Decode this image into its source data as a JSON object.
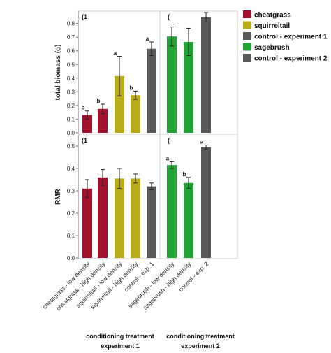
{
  "chart_data": {
    "type": "bar",
    "categories": [
      "cheatgrass - low density",
      "cheatgrass - high density",
      "squirreltail - low density",
      "squirreltail - high density",
      "control - exp. 1",
      "sagebrush - low density",
      "sagebrush - high density",
      "control - exp. 2"
    ],
    "bar_colors": [
      "#a3122c",
      "#a3122c",
      "#b8ad18",
      "#b8ad18",
      "#595959",
      "#22a336",
      "#22a336",
      "#595959"
    ],
    "legend": {
      "position": "right",
      "entries": [
        {
          "label": "cheatgrass",
          "color": "#a3122c"
        },
        {
          "label": "squirreltail",
          "color": "#b8ad18"
        },
        {
          "label": "control - experiment 1",
          "color": "#595959"
        },
        {
          "label": "sagebrush",
          "color": "#22a336"
        },
        {
          "label": "control - experiment 2",
          "color": "#595959"
        }
      ]
    },
    "panels": [
      {
        "panel_label_left": "(1",
        "panel_label_right": "(",
        "ylabel": "total biomass (g)",
        "ylim": [
          0,
          0.88
        ],
        "yticks": [
          "0.0",
          "0.1",
          "0.2",
          "0.3",
          "0.4",
          "0.5",
          "0.6",
          "0.7",
          "0.8"
        ],
        "values": [
          0.13,
          0.175,
          0.415,
          0.275,
          0.615,
          0.705,
          0.665,
          0.845
        ],
        "errors": [
          0.03,
          0.035,
          0.145,
          0.03,
          0.05,
          0.07,
          0.1,
          0.035
        ],
        "letters": [
          "b",
          "b",
          "a",
          "b",
          "a",
          "",
          "",
          ""
        ]
      },
      {
        "panel_label_left": "(1",
        "panel_label_right": "(",
        "ylabel": "RMR",
        "ylim": [
          0,
          0.52
        ],
        "yticks": [
          "0.0",
          "0.1",
          "0.2",
          "0.3",
          "0.4",
          "0.5"
        ],
        "values": [
          0.31,
          0.36,
          0.355,
          0.355,
          0.32,
          0.415,
          0.335,
          0.495
        ],
        "errors": [
          0.04,
          0.035,
          0.045,
          0.02,
          0.015,
          0.015,
          0.025,
          0.01
        ],
        "letters": [
          "",
          "",
          "",
          "",
          "",
          "a",
          "b",
          "a"
        ]
      }
    ],
    "group_labels": [
      {
        "line1": "conditioning treatment",
        "line2": "experiment 1"
      },
      {
        "line1": "conditioning treatment",
        "line2": "experiment 2"
      }
    ]
  }
}
